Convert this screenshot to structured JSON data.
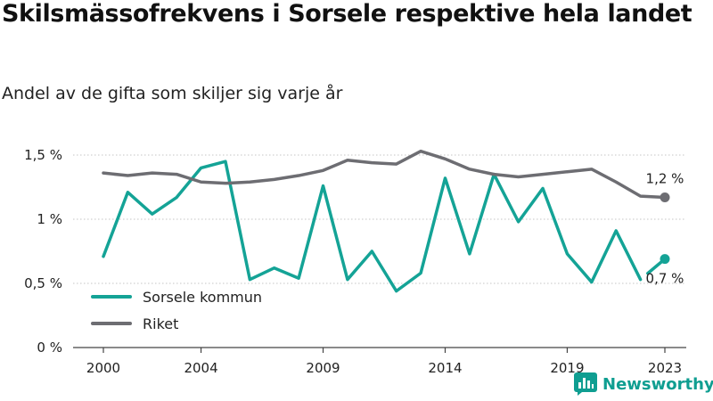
{
  "title": "Skilsmässofrekvens i Sorsele respektive hela landet",
  "subtitle": "Andel av de gifta som skiljer sig varje år",
  "brand": {
    "name": "Newsworthy",
    "color": "#0f9e91",
    "icon": "bar-chart-logo-icon"
  },
  "chart_data": {
    "type": "line",
    "x": [
      2000,
      2001,
      2002,
      2003,
      2004,
      2005,
      2006,
      2007,
      2008,
      2009,
      2010,
      2011,
      2012,
      2013,
      2014,
      2015,
      2016,
      2017,
      2018,
      2019,
      2020,
      2021,
      2022,
      2023
    ],
    "xticks": [
      2000,
      2004,
      2009,
      2014,
      2019,
      2023
    ],
    "xtick_labels": [
      "2000",
      "2004",
      "2009",
      "2014",
      "2019",
      "2023"
    ],
    "yticks": [
      0,
      0.5,
      1,
      1.5
    ],
    "ytick_labels": [
      "0 %",
      "0,5 %",
      "1 %",
      "1,5 %"
    ],
    "ylim": [
      0,
      1.5
    ],
    "grid": true,
    "legend_position": "bottom-left",
    "series": [
      {
        "name": "Sorsele kommun",
        "color": "#14a396",
        "values": [
          0.71,
          1.21,
          1.04,
          1.17,
          1.4,
          1.45,
          0.53,
          0.62,
          0.54,
          1.26,
          0.53,
          0.75,
          0.44,
          0.58,
          1.32,
          0.73,
          1.35,
          0.98,
          1.24,
          0.73,
          0.51,
          0.91,
          0.53,
          0.69
        ],
        "segment_break_before_last": true,
        "end_label": "0,7 %"
      },
      {
        "name": "Riket",
        "color": "#6d6d72",
        "values": [
          1.36,
          1.34,
          1.36,
          1.35,
          1.29,
          1.28,
          1.29,
          1.31,
          1.34,
          1.38,
          1.46,
          1.44,
          1.43,
          1.53,
          1.47,
          1.39,
          1.35,
          1.33,
          1.35,
          1.37,
          1.39,
          1.29,
          1.18,
          1.17
        ],
        "segment_break_before_last": false,
        "end_label": "1,2 %"
      }
    ]
  }
}
